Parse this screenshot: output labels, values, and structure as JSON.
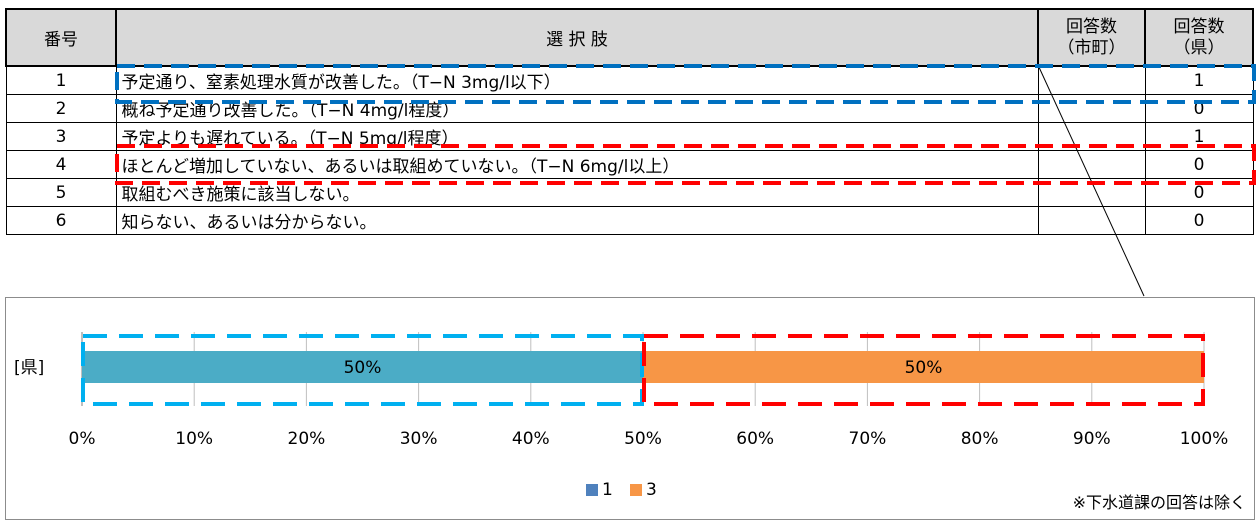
{
  "table": {
    "headers": {
      "number": "番号",
      "choice": "選 択 肢",
      "municipal": [
        "回答数",
        "（市町）"
      ],
      "prefecture": [
        "回答数",
        "（県）"
      ]
    },
    "rows": [
      {
        "num": "1",
        "label": "予定通り、窒素処理水質が改善した。（T−N 3mg/l以下）",
        "municipal": "",
        "prefecture": "1"
      },
      {
        "num": "2",
        "label": "概ね予定通り改善した。（T−N 4mg/l程度）",
        "municipal": "",
        "prefecture": "0"
      },
      {
        "num": "3",
        "label": "予定よりも遅れている。（T−N 5mg/l程度）",
        "municipal": "",
        "prefecture": "1"
      },
      {
        "num": "4",
        "label": "ほとんど増加していない、あるいは取組めていない。（T−N 6mg/l以上）",
        "municipal": "",
        "prefecture": "0"
      },
      {
        "num": "5",
        "label": "取組むべき施策に該当しない。",
        "municipal": "",
        "prefecture": "0"
      },
      {
        "num": "6",
        "label": "知らない、あるいは分からない。",
        "municipal": "",
        "prefecture": "0"
      }
    ]
  },
  "chart_data": {
    "type": "bar",
    "orientation": "horizontal",
    "stacked": true,
    "categories": [
      "[県]"
    ],
    "series": [
      {
        "name": "1",
        "values": [
          50
        ],
        "color": "#4bacc6",
        "label": "50%"
      },
      {
        "name": "3",
        "values": [
          50
        ],
        "color": "#f79646",
        "label": "50%"
      }
    ],
    "xlim": [
      0,
      100
    ],
    "xticks": [
      "0%",
      "10%",
      "20%",
      "30%",
      "40%",
      "50%",
      "60%",
      "70%",
      "80%",
      "90%",
      "100%"
    ],
    "grid": true,
    "legend_position": "bottom",
    "legend_colors": {
      "1": "#4f81bd",
      "3": "#f79646"
    }
  },
  "footnote": "※下水道課の回答は除く",
  "colors": {
    "highlight_blue": "#0070c0",
    "highlight_red": "#ff0000",
    "chart_highlight_blue": "#00b0f0",
    "header_bg": "#d9d9d9"
  }
}
